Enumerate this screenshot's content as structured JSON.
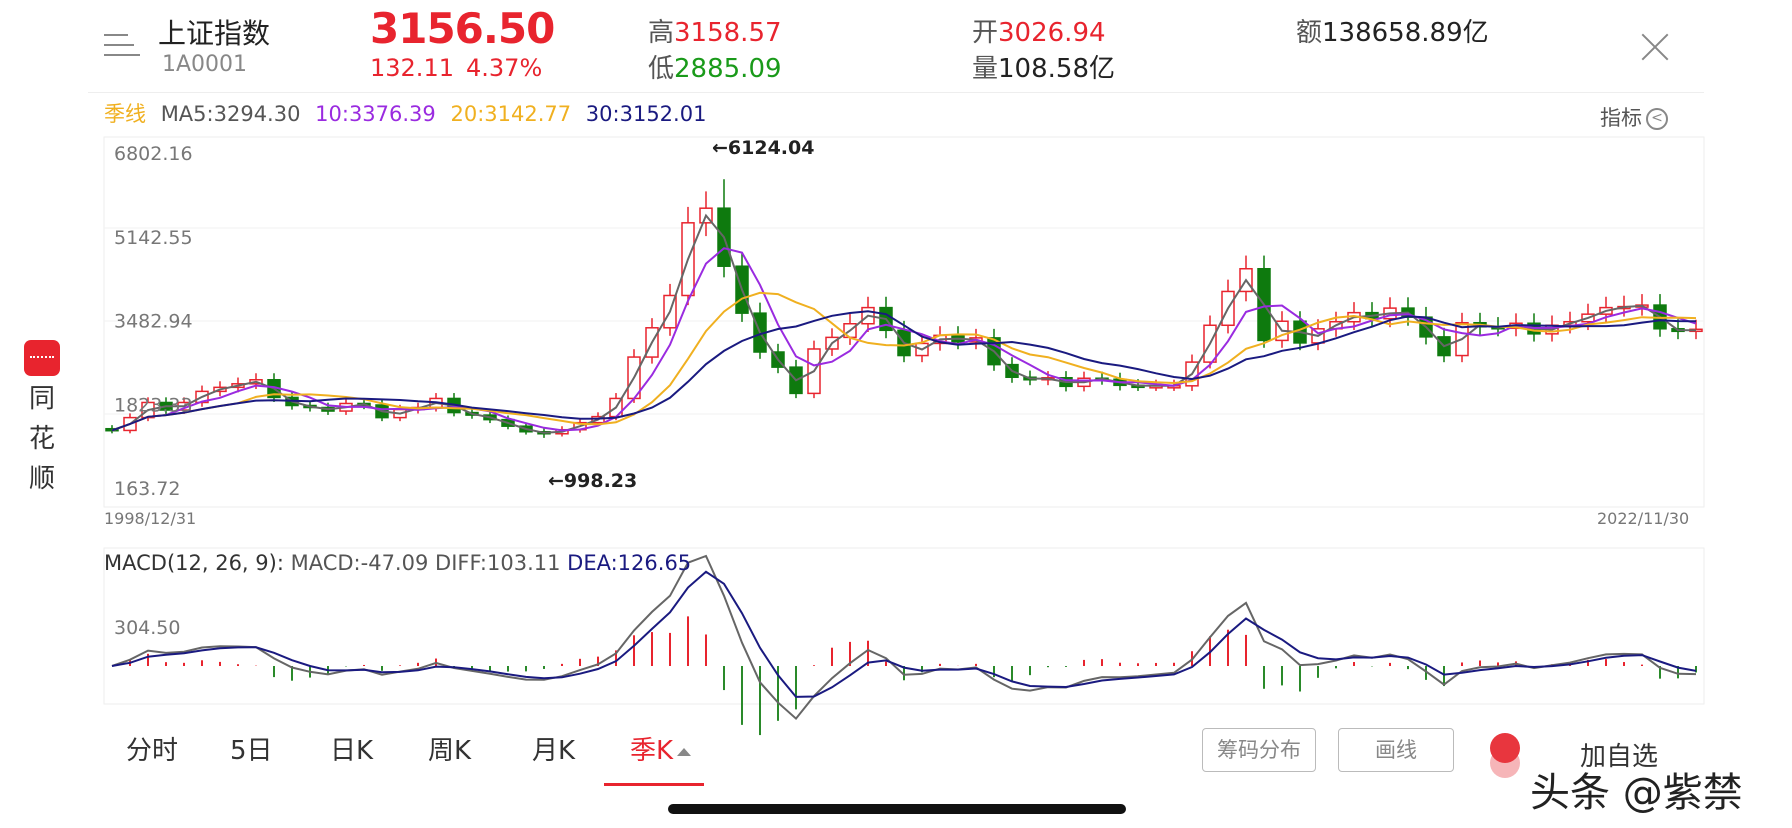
{
  "header": {
    "index_name": "上证指数",
    "index_code": "1A0001",
    "price": "3156.50",
    "change": "132.11",
    "change_pct": "4.37%",
    "high_label": "高",
    "high_value": "3158.57",
    "low_label": "低",
    "low_value": "2885.09",
    "open_label": "开",
    "open_value": "3026.94",
    "volume_label": "量",
    "volume_value": "108.58亿",
    "amount_label": "额",
    "amount_value": "138658.89亿"
  },
  "ma_legend": {
    "period": "季线",
    "ma5": "MA5:3294.30",
    "ma10": "10:3376.39",
    "ma20": "20:3142.77",
    "ma30": "30:3152.01"
  },
  "indicator_label": "指标",
  "price_axis": [
    "6802.16",
    "5142.55",
    "3482.94",
    "1823.33",
    "163.72"
  ],
  "date_start": "1998/12/31",
  "date_end": "2022/11/30",
  "high_marker": "←6124.04",
  "low_marker": "←998.23",
  "macd_legend": {
    "title": "MACD(12, 26, 9):",
    "macd": "MACD:-47.09",
    "diff": "DIFF:103.11",
    "dea": "DEA:126.65"
  },
  "macd_axis": "304.50",
  "side_logo": {
    "line1": "同",
    "line2": "花",
    "line3": "顺"
  },
  "tabs": [
    {
      "label": "分时"
    },
    {
      "label": "5日"
    },
    {
      "label": "日K"
    },
    {
      "label": "周K"
    },
    {
      "label": "月K"
    },
    {
      "label": "季K"
    }
  ],
  "buttons": {
    "chip": "筹码分布",
    "draw": "画线",
    "favorite": "加自选"
  },
  "watermark": "头条 @紫禁",
  "colors": {
    "up": "#e8242e",
    "down": "#0e7a0e",
    "ma5": "#666666",
    "ma10": "#9a2be0",
    "ma20": "#f0b020",
    "ma30": "#1a1a80"
  },
  "chart_data": {
    "type": "candlestick",
    "period": "quarterly",
    "x_range": [
      "1998/12/31",
      "2022/11/30"
    ],
    "y_range": [
      163.72,
      6802.16
    ],
    "y_ticks": [
      6802.16,
      5142.55,
      3482.94,
      1823.33,
      163.72
    ],
    "annotations": [
      {
        "label": "6124.04",
        "kind": "high"
      },
      {
        "label": "998.23",
        "kind": "low"
      }
    ],
    "closes": [
      1146,
      1400,
      1700,
      1550,
      1700,
      1920,
      2000,
      2070,
      2150,
      1800,
      1640,
      1600,
      1530,
      1680,
      1650,
      1400,
      1560,
      1600,
      1780,
      1500,
      1450,
      1360,
      1230,
      1120,
      1080,
      1160,
      1300,
      1420,
      1780,
      2600,
      3180,
      3820,
      5260,
      5550,
      4400,
      3470,
      2700,
      2400,
      1880,
      2760,
      2990,
      3260,
      3580,
      3130,
      2630,
      2870,
      3030,
      2900,
      2980,
      2450,
      2200,
      2150,
      2190,
      2020,
      2180,
      2160,
      2040,
      2030,
      2030,
      2030,
      2500,
      3230,
      3900,
      4350,
      2930,
      3310,
      2880,
      3160,
      3300,
      3480,
      3360,
      3570,
      3390,
      3000,
      2630,
      3280,
      3200,
      3170,
      3270,
      3060,
      3230,
      3300,
      3450,
      3580,
      3600,
      3630,
      3160,
      3110,
      3150
    ],
    "ma_series": [
      "MA5",
      "MA10",
      "MA20",
      "MA30"
    ],
    "macd": {
      "macd": -47.09,
      "diff": 103.11,
      "dea": 126.65,
      "axis_tick": 304.5
    }
  }
}
